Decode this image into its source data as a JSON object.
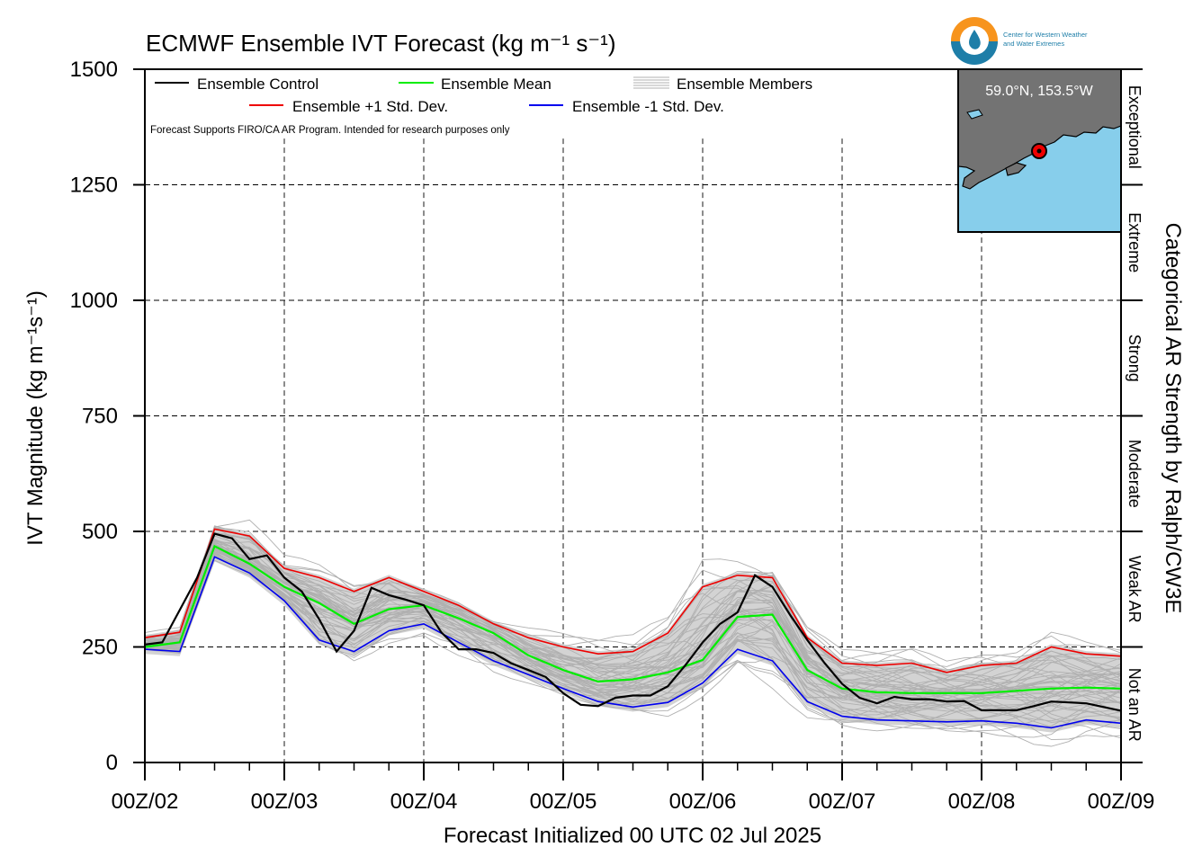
{
  "chart_data": {
    "type": "line",
    "title": "ECMWF Ensemble IVT Forecast (kg m⁻¹ s⁻¹)",
    "xlabel": "Forecast Initialized 00 UTC 02 Jul 2025",
    "ylabel": "IVT Magnitude (kg m⁻¹s⁻¹)",
    "right_label": "Categorical AR Strength by Ralph/CW3E",
    "ylim": [
      0,
      1500
    ],
    "y_ticks": [
      0,
      250,
      500,
      750,
      1000,
      1250,
      1500
    ],
    "xlim_hours": [
      0,
      168
    ],
    "x_ticks": [
      "00Z/02",
      "00Z/03",
      "00Z/04",
      "00Z/05",
      "00Z/06",
      "00Z/07",
      "00Z/08",
      "00Z/09"
    ],
    "grid": true,
    "legend_placement": "top-left",
    "legend": [
      "Ensemble Control",
      "Ensemble Mean",
      "Ensemble Members",
      "Ensemble +1 Std. Dev.",
      "Ensemble -1 Std. Dev."
    ],
    "note": "Forecast Supports FIRO/CA AR Program. Intended for research purposes only",
    "categories_right": [
      {
        "label": "Not an AR",
        "range": [
          0,
          250
        ]
      },
      {
        "label": "Weak AR",
        "range": [
          250,
          500
        ]
      },
      {
        "label": "Moderate",
        "range": [
          500,
          750
        ]
      },
      {
        "label": "Strong",
        "range": [
          750,
          1000
        ]
      },
      {
        "label": "Extreme",
        "range": [
          1000,
          1250
        ]
      },
      {
        "label": "Exceptional",
        "range": [
          1250,
          1500
        ]
      }
    ],
    "location_label": "59.0°N, 153.5°W",
    "logo_text": [
      "Center for Western Weather",
      "and Water Extremes"
    ],
    "colors": {
      "control": "#000000",
      "mean": "#00ee00",
      "plus_sd": "#ee0000",
      "minus_sd": "#0000ee",
      "members": "#b0b0b0",
      "spread": "#d3d3d3",
      "map_water": "#87ceeb",
      "map_land": "#737373"
    },
    "series": [
      {
        "name": "Ensemble Control",
        "x": [
          0,
          3,
          6,
          9,
          12,
          15,
          18,
          21,
          24,
          27,
          30,
          33,
          36,
          39,
          42,
          45,
          48,
          51,
          54,
          57,
          60,
          63,
          66,
          69,
          72,
          75,
          78,
          81,
          84,
          87,
          90,
          93,
          96,
          99,
          102,
          105,
          108,
          111,
          114,
          117,
          120,
          123,
          126,
          129,
          132,
          135,
          138,
          141,
          144,
          147,
          150,
          153,
          156,
          159,
          162,
          165,
          168
        ],
        "values": [
          255,
          260,
          330,
          400,
          495,
          485,
          440,
          448,
          400,
          370,
          310,
          240,
          285,
          378,
          362,
          352,
          340,
          282,
          245,
          245,
          237,
          215,
          200,
          185,
          150,
          125,
          122,
          140,
          145,
          145,
          165,
          210,
          260,
          300,
          325,
          405,
          380,
          320,
          265,
          215,
          170,
          140,
          128,
          142,
          137,
          137,
          132,
          133,
          113,
          113,
          113,
          122,
          132,
          130,
          128,
          120,
          112
        ]
      },
      {
        "name": "Ensemble Mean",
        "x": [
          0,
          6,
          12,
          18,
          24,
          30,
          36,
          42,
          48,
          54,
          60,
          66,
          72,
          78,
          84,
          90,
          96,
          102,
          108,
          114,
          120,
          126,
          132,
          138,
          144,
          150,
          156,
          162,
          168
        ],
        "values": [
          250,
          260,
          468,
          430,
          380,
          345,
          300,
          332,
          340,
          312,
          280,
          232,
          200,
          175,
          180,
          195,
          222,
          315,
          320,
          200,
          160,
          152,
          150,
          150,
          150,
          155,
          160,
          162,
          160
        ]
      },
      {
        "name": "Ensemble +1 Std. Dev.",
        "x": [
          0,
          6,
          12,
          18,
          24,
          30,
          36,
          42,
          48,
          54,
          60,
          66,
          72,
          78,
          84,
          90,
          96,
          102,
          108,
          114,
          120,
          126,
          132,
          138,
          144,
          150,
          156,
          162,
          168
        ],
        "values": [
          270,
          282,
          505,
          490,
          420,
          400,
          370,
          400,
          370,
          340,
          300,
          270,
          250,
          235,
          240,
          280,
          380,
          405,
          400,
          270,
          215,
          210,
          215,
          195,
          210,
          215,
          250,
          235,
          230
        ]
      },
      {
        "name": "Ensemble -1 Std. Dev.",
        "x": [
          0,
          6,
          12,
          18,
          24,
          30,
          36,
          42,
          48,
          54,
          60,
          66,
          72,
          78,
          84,
          90,
          96,
          102,
          108,
          114,
          120,
          126,
          132,
          138,
          144,
          150,
          156,
          162,
          168
        ],
        "values": [
          245,
          240,
          445,
          410,
          350,
          265,
          240,
          285,
          300,
          260,
          220,
          190,
          160,
          132,
          120,
          130,
          172,
          245,
          220,
          132,
          100,
          92,
          90,
          88,
          90,
          85,
          75,
          92,
          85
        ]
      }
    ]
  }
}
